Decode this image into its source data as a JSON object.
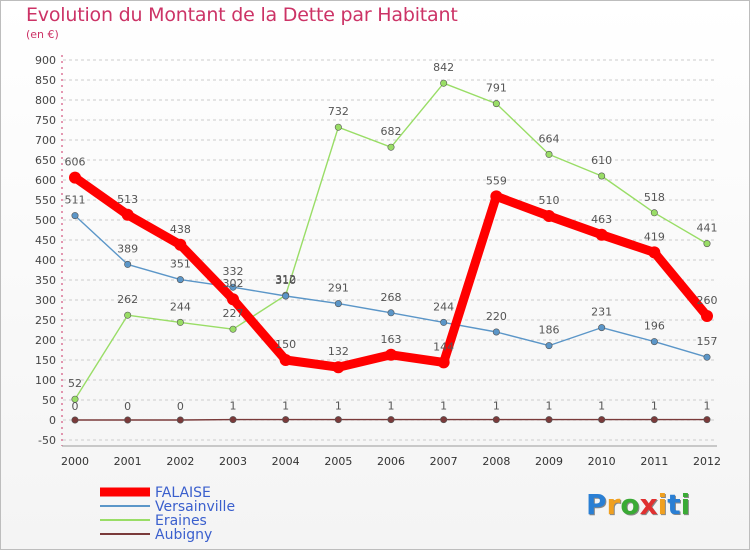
{
  "title": "Evolution du Montant de la Dette par Habitant",
  "subtitle": "(en €)",
  "logo": {
    "letters": [
      "P",
      "r",
      "o",
      "x",
      "i",
      "t",
      "i"
    ],
    "colors": [
      "#2a7fd4",
      "#f0a020",
      "#3aaa35",
      "#e03030",
      "#f0a020",
      "#2a7fd4",
      "#3aaa35"
    ]
  },
  "chart_data": {
    "type": "line",
    "x": [
      "2000",
      "2001",
      "2002",
      "2003",
      "2004",
      "2005",
      "2006",
      "2007",
      "2008",
      "2009",
      "2010",
      "2011",
      "2012"
    ],
    "yticks": [
      -50,
      0,
      50,
      100,
      150,
      200,
      250,
      300,
      350,
      400,
      450,
      500,
      550,
      600,
      650,
      700,
      750,
      800,
      850,
      900
    ],
    "ylim": [
      -50,
      900
    ],
    "grid": "horizontal dashed",
    "legend_position": "bottom-left",
    "series": [
      {
        "name": "FALAISE",
        "color": "#ff0000",
        "values": [
          606,
          513,
          438,
          302,
          150,
          132,
          163,
          144,
          559,
          510,
          463,
          419,
          260
        ]
      },
      {
        "name": "Versainville",
        "color": "#5b96c8",
        "values": [
          511,
          389,
          351,
          332,
          310,
          291,
          268,
          244,
          220,
          186,
          231,
          196,
          157
        ]
      },
      {
        "name": "Eraines",
        "color": "#99dd66",
        "values": [
          52,
          262,
          244,
          227,
          312,
          732,
          682,
          842,
          791,
          664,
          610,
          518,
          441
        ]
      },
      {
        "name": "Aubigny",
        "color": "#7a3a3a",
        "values": [
          0,
          0,
          0,
          1,
          1,
          1,
          1,
          1,
          1,
          1,
          1,
          1,
          1
        ]
      }
    ]
  }
}
